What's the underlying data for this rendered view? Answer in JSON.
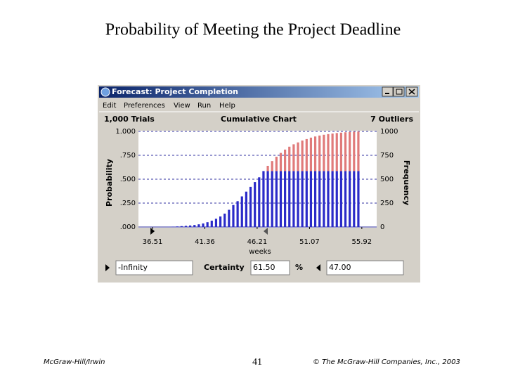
{
  "slide": {
    "title": "Probability of Meeting the Project Deadline",
    "footer_left": "McGraw-Hill/Irwin",
    "page": "41",
    "footer_right": "© The McGraw-Hill Companies, Inc., 2003"
  },
  "window": {
    "title": "Forecast: Project Completion",
    "menu": [
      "Edit",
      "Preferences",
      "View",
      "Run",
      "Help"
    ]
  },
  "chart_data": {
    "type": "bar",
    "title": "Cumulative Chart",
    "trials": "1,000 Trials",
    "outliers": "7 Outliers",
    "xlabel": "weeks",
    "ylabel": "Probability",
    "y2label": "Frequency",
    "x": [
      38.0,
      38.4,
      38.8,
      39.2,
      39.6,
      40.0,
      40.4,
      40.8,
      41.2,
      41.6,
      42.0,
      42.4,
      42.8,
      43.2,
      43.6,
      44.0,
      44.4,
      44.8,
      45.2,
      45.6,
      46.0,
      46.4,
      46.8,
      47.2,
      47.6,
      48.0,
      48.4,
      48.8,
      49.2,
      49.6,
      50.0,
      50.4,
      50.8,
      51.2,
      51.6,
      52.0,
      52.4,
      52.8,
      53.2,
      53.6,
      54.0,
      54.4,
      54.8,
      55.2,
      55.6
    ],
    "values": [
      0.002,
      0.004,
      0.006,
      0.009,
      0.012,
      0.016,
      0.021,
      0.028,
      0.037,
      0.05,
      0.066,
      0.086,
      0.11,
      0.14,
      0.18,
      0.23,
      0.27,
      0.32,
      0.37,
      0.42,
      0.47,
      0.52,
      0.585,
      0.64,
      0.69,
      0.735,
      0.775,
      0.81,
      0.84,
      0.865,
      0.885,
      0.905,
      0.92,
      0.935,
      0.947,
      0.957,
      0.965,
      0.972,
      0.978,
      0.983,
      0.987,
      0.991,
      0.994,
      0.997,
      0.999
    ],
    "color": "#2a2ac8",
    "outside_color": "#e07a7a",
    "xlim": [
      35.2,
      57.3
    ],
    "xticks": [
      36.51,
      41.36,
      46.21,
      51.07,
      55.92
    ],
    "ylim": [
      0,
      1
    ],
    "yticks": [
      {
        "value": 0,
        "label": ".000"
      },
      {
        "value": 0.25,
        "label": ".250"
      },
      {
        "value": 0.5,
        "label": ".500"
      },
      {
        "value": 0.75,
        "label": ".750"
      },
      {
        "value": 1,
        "label": "1.000"
      }
    ],
    "y2lim": [
      0,
      1000
    ],
    "y2ticks": [
      0,
      250,
      500,
      750,
      1000
    ],
    "grid": true
  },
  "controls": {
    "lower": "-Infinity",
    "certainty_label": "Certainty",
    "certainty": "61.50",
    "unit": "%",
    "upper": "47.00"
  }
}
